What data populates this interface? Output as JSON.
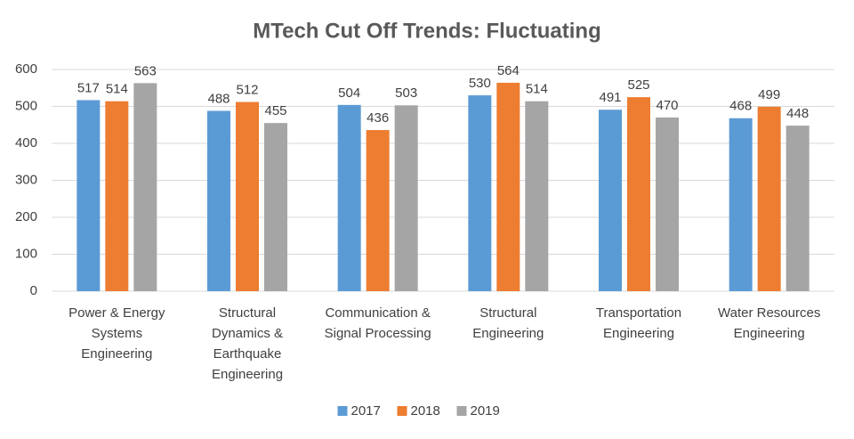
{
  "chart_data": {
    "type": "bar",
    "title": "MTech Cut Off Trends: Fluctuating",
    "categories": [
      [
        "Power & Energy",
        "Systems",
        "Engineering"
      ],
      [
        "Structural",
        "Dynamics &",
        "Earthquake",
        "Engineering"
      ],
      [
        "Communication &",
        "Signal Processing"
      ],
      [
        "Structural",
        "Engineering"
      ],
      [
        "Transportation",
        "Engineering"
      ],
      [
        "Water Resources",
        "Engineering"
      ]
    ],
    "series": [
      {
        "name": "2017",
        "color": "#5b9bd5",
        "values": [
          517,
          488,
          504,
          530,
          491,
          468
        ]
      },
      {
        "name": "2018",
        "color": "#ed7d31",
        "values": [
          514,
          512,
          436,
          564,
          525,
          499
        ]
      },
      {
        "name": "2019",
        "color": "#a5a5a5",
        "values": [
          563,
          455,
          503,
          514,
          470,
          448
        ]
      }
    ],
    "ylim": [
      0,
      600
    ],
    "yticks": [
      0,
      100,
      200,
      300,
      400,
      500,
      600
    ],
    "grid": true,
    "legend": "bottom"
  }
}
